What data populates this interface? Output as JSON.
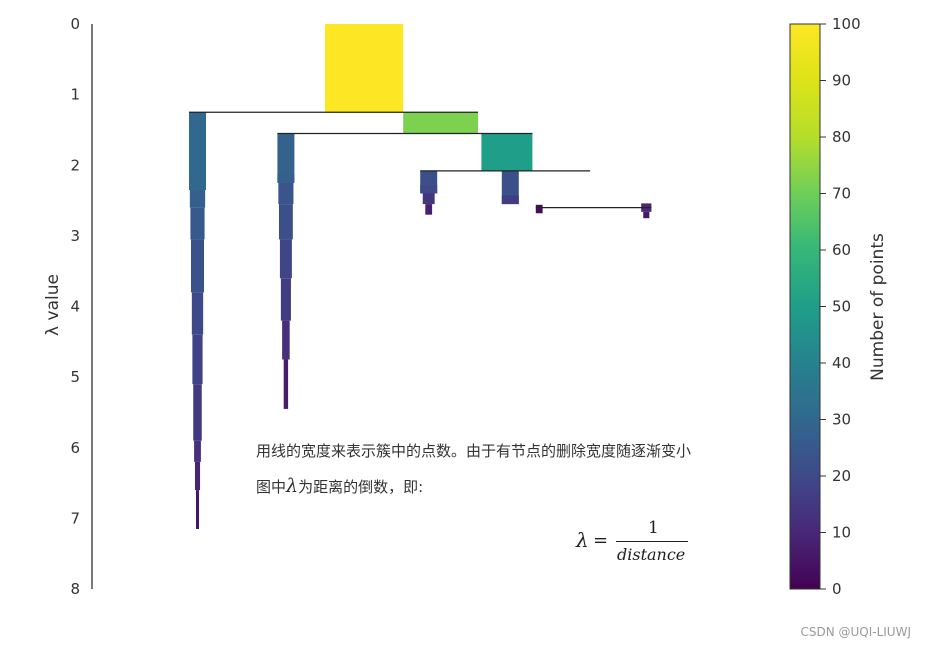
{
  "chart_data": {
    "type": "icicle",
    "ylabel": "λ value",
    "ylim": [
      0,
      8
    ],
    "y_ticks": [
      "0",
      "1",
      "2",
      "3",
      "4",
      "5",
      "6",
      "7",
      "8"
    ],
    "y_inverted": true,
    "colorbar": {
      "label": "Number of points",
      "range": [
        0,
        100
      ],
      "ticks": [
        "0",
        "10",
        "20",
        "30",
        "40",
        "50",
        "60",
        "70",
        "80",
        "90",
        "100"
      ],
      "colormap": "viridis"
    },
    "nodes": [
      {
        "x0": 0.4,
        "x1": 0.63,
        "y0": 0.0,
        "y1": 1.25,
        "points": 100
      },
      {
        "x0": 0.63,
        "x1": 0.85,
        "y0": 1.25,
        "y1": 1.55,
        "points": 72
      },
      {
        "x0": 0.86,
        "x1": 1.01,
        "y0": 1.55,
        "y1": 2.08,
        "points": 50
      },
      {
        "x0": 0.0,
        "x1": 0.05,
        "y0": 1.25,
        "y1": 2.35,
        "points": 30
      },
      {
        "x0": 0.26,
        "x1": 0.31,
        "y0": 1.55,
        "y1": 2.25,
        "points": 28
      },
      {
        "x0": 0.68,
        "x1": 0.73,
        "y0": 2.08,
        "y1": 2.4,
        "points": 22
      },
      {
        "x0": 0.92,
        "x1": 0.97,
        "y0": 2.08,
        "y1": 2.55,
        "points": 22
      }
    ],
    "splits": [
      {
        "y": 1.25,
        "x0": 0.0,
        "x1": 0.85
      },
      {
        "y": 1.55,
        "x0": 0.26,
        "x1": 1.01
      },
      {
        "y": 2.08,
        "x0": 0.68,
        "x1": 1.18
      },
      {
        "y": 2.6,
        "x0": 1.02,
        "x1": 1.36
      }
    ],
    "stems": [
      {
        "x0": 0.0,
        "x1": 0.05,
        "profile": [
          [
            2.35,
            30
          ],
          [
            2.6,
            27
          ],
          [
            3.05,
            25
          ],
          [
            3.8,
            23
          ],
          [
            4.4,
            20
          ],
          [
            5.1,
            18
          ],
          [
            5.9,
            15
          ],
          [
            6.2,
            12
          ],
          [
            6.6,
            9
          ],
          [
            7.15,
            5
          ]
        ]
      },
      {
        "x0": 0.26,
        "x1": 0.31,
        "profile": [
          [
            2.25,
            27
          ],
          [
            2.55,
            24
          ],
          [
            3.05,
            22
          ],
          [
            3.6,
            19
          ],
          [
            4.2,
            16
          ],
          [
            4.75,
            12
          ],
          [
            5.45,
            7
          ]
        ]
      },
      {
        "x0": 0.68,
        "x1": 0.73,
        "profile": [
          [
            2.4,
            20
          ],
          [
            2.55,
            14
          ],
          [
            2.7,
            8
          ]
        ]
      },
      {
        "x0": 0.92,
        "x1": 0.97,
        "profile": [
          [
            2.55,
            16
          ]
        ]
      },
      {
        "x0": 1.02,
        "x1": 1.04,
        "profile": [
          [
            2.68,
            3
          ]
        ]
      },
      {
        "x0": 1.33,
        "x1": 1.36,
        "profile": [
          [
            2.66,
            10
          ],
          [
            2.75,
            6
          ]
        ]
      }
    ],
    "annotation_line1": "用线的宽度来表示簇中的点数。由于有节点的删除宽度随逐渐变小",
    "annotation_line2_prefix": "图中",
    "annotation_line2_symbol": "λ",
    "annotation_line2_suffix": "为距离的倒数，即:",
    "formula": {
      "lhs": "λ",
      "eq": "=",
      "numerator": "1",
      "denominator": "distance"
    }
  },
  "watermark": "CSDN @UQI-LIUWJ"
}
